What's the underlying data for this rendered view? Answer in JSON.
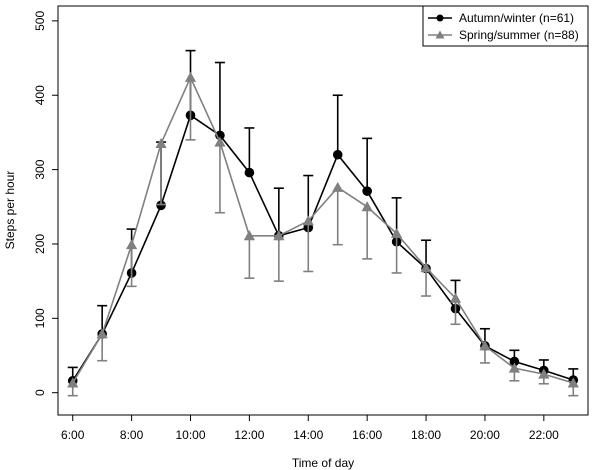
{
  "chart_data": {
    "type": "line",
    "xlabel": "Time of day",
    "ylabel": "Steps per hour",
    "xlim": [
      5.5,
      23.5
    ],
    "ylim": [
      -30,
      520
    ],
    "x_ticks": [
      6,
      8,
      10,
      12,
      14,
      16,
      18,
      20,
      22
    ],
    "x_tick_labels": [
      "6:00",
      "8:00",
      "10:00",
      "12:00",
      "14:00",
      "16:00",
      "18:00",
      "20:00",
      "22:00"
    ],
    "y_ticks": [
      0,
      100,
      200,
      300,
      400,
      500
    ],
    "y_tick_labels": [
      "0",
      "100",
      "200",
      "300",
      "400",
      "500"
    ],
    "grid": false,
    "legend_position": "top-right",
    "series": [
      {
        "name": "Autumn/winter (n=61)",
        "color": "#000000",
        "marker": "circle",
        "x": [
          6,
          7,
          8,
          9,
          10,
          11,
          12,
          13,
          14,
          15,
          16,
          17,
          18,
          19,
          20,
          21,
          22,
          23
        ],
        "y": [
          16,
          79,
          161,
          252,
          373,
          346,
          296,
          211,
          222,
          320,
          271,
          203,
          167,
          113,
          63,
          42,
          30,
          17
        ],
        "err_high": [
          34,
          117,
          220,
          337,
          460,
          444,
          356,
          275,
          292,
          400,
          342,
          262,
          205,
          151,
          86,
          57,
          44,
          32
        ],
        "err_low": [
          null,
          null,
          null,
          null,
          null,
          null,
          null,
          null,
          null,
          null,
          null,
          null,
          null,
          null,
          null,
          null,
          null,
          null
        ]
      },
      {
        "name": "Spring/summer (n=88)",
        "color": "#808080",
        "marker": "triangle",
        "x": [
          6,
          7,
          8,
          9,
          10,
          11,
          12,
          13,
          14,
          15,
          16,
          17,
          18,
          19,
          20,
          21,
          22,
          23
        ],
        "y": [
          13,
          79,
          199,
          335,
          424,
          337,
          211,
          211,
          231,
          276,
          250,
          214,
          168,
          127,
          63,
          33,
          25,
          13
        ],
        "err_high": [
          null,
          null,
          null,
          null,
          null,
          null,
          null,
          null,
          null,
          null,
          null,
          null,
          null,
          null,
          null,
          null,
          null,
          null
        ],
        "err_low": [
          -4,
          43,
          143,
          253,
          340,
          242,
          154,
          150,
          163,
          199,
          180,
          161,
          130,
          92,
          40,
          16,
          12,
          -4
        ]
      }
    ]
  }
}
